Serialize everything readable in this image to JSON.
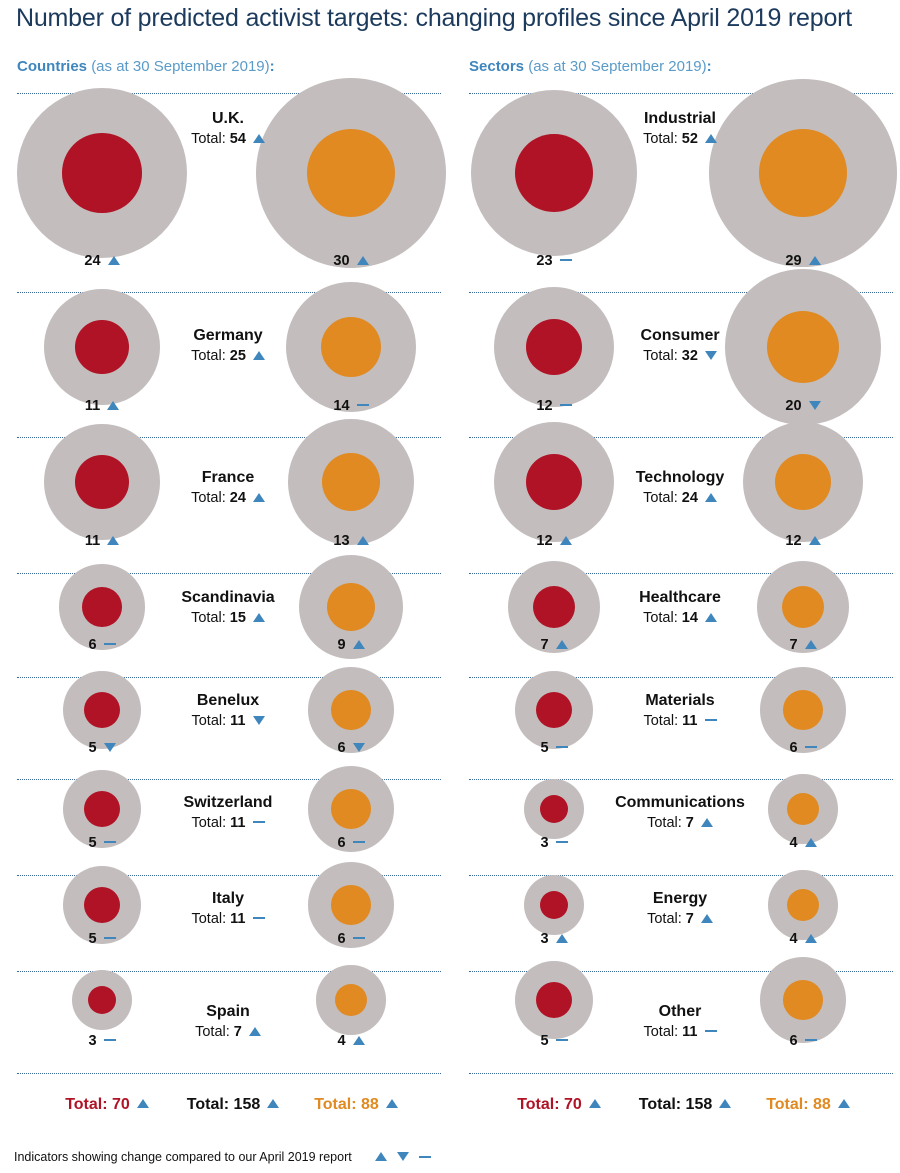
{
  "title": "Number of predicted activist targets: changing profiles since April 2019 report",
  "colors": {
    "outer": "#c3bdbd",
    "red": "#b01325",
    "orange": "#e08a21",
    "indicator": "#3f86bd",
    "text": "#111111",
    "title": "#1b3a5c"
  },
  "columns": [
    {
      "heading": "Countries",
      "subheading": "(as at 30 September 2019)",
      "colon": ":"
    },
    {
      "heading": "Sectors",
      "subheading": "(as at 30 September 2019)",
      "colon": ":"
    }
  ],
  "chart_data": [
    {
      "type": "bubble",
      "title": "Countries",
      "series": [
        {
          "name": "red",
          "color": "#b01325"
        },
        {
          "name": "orange",
          "color": "#e08a21"
        }
      ],
      "rows": [
        {
          "name": "U.K.",
          "total": {
            "label": "Total:",
            "value": 54,
            "change": "up"
          },
          "left": {
            "value": 24,
            "change": "up"
          },
          "right": {
            "value": 30,
            "change": "up"
          }
        },
        {
          "name": "Germany",
          "total": {
            "label": "Total:",
            "value": 25,
            "change": "up"
          },
          "left": {
            "value": 11,
            "change": "up"
          },
          "right": {
            "value": 14,
            "change": "flat"
          }
        },
        {
          "name": "France",
          "total": {
            "label": "Total:",
            "value": 24,
            "change": "up"
          },
          "left": {
            "value": 11,
            "change": "up"
          },
          "right": {
            "value": 13,
            "change": "up"
          }
        },
        {
          "name": "Scandinavia",
          "total": {
            "label": "Total:",
            "value": 15,
            "change": "up"
          },
          "left": {
            "value": 6,
            "change": "flat"
          },
          "right": {
            "value": 9,
            "change": "up"
          }
        },
        {
          "name": "Benelux",
          "total": {
            "label": "Total:",
            "value": 11,
            "change": "down"
          },
          "left": {
            "value": 5,
            "change": "down"
          },
          "right": {
            "value": 6,
            "change": "down"
          }
        },
        {
          "name": "Switzerland",
          "total": {
            "label": "Total:",
            "value": 11,
            "change": "flat"
          },
          "left": {
            "value": 5,
            "change": "flat"
          },
          "right": {
            "value": 6,
            "change": "flat"
          }
        },
        {
          "name": "Italy",
          "total": {
            "label": "Total:",
            "value": 11,
            "change": "flat"
          },
          "left": {
            "value": 5,
            "change": "flat"
          },
          "right": {
            "value": 6,
            "change": "flat"
          }
        },
        {
          "name": "Spain",
          "total": {
            "label": "Total:",
            "value": 7,
            "change": "up"
          },
          "left": {
            "value": 3,
            "change": "flat"
          },
          "right": {
            "value": 4,
            "change": "up"
          }
        }
      ],
      "grand_totals": [
        {
          "label": "Total: 70",
          "color": "#b01325",
          "change": "up"
        },
        {
          "label": "Total: 158",
          "color": "#111111",
          "change": "up"
        },
        {
          "label": "Total: 88",
          "color": "#e08a21",
          "change": "up"
        }
      ]
    },
    {
      "type": "bubble",
      "title": "Sectors",
      "series": [
        {
          "name": "red",
          "color": "#b01325"
        },
        {
          "name": "orange",
          "color": "#e08a21"
        }
      ],
      "rows": [
        {
          "name": "Industrial",
          "total": {
            "label": "Total:",
            "value": 52,
            "change": "up"
          },
          "left": {
            "value": 23,
            "change": "flat"
          },
          "right": {
            "value": 29,
            "change": "up"
          }
        },
        {
          "name": "Consumer",
          "total": {
            "label": "Total:",
            "value": 32,
            "change": "down"
          },
          "left": {
            "value": 12,
            "change": "flat"
          },
          "right": {
            "value": 20,
            "change": "down"
          }
        },
        {
          "name": "Technology",
          "total": {
            "label": "Total:",
            "value": 24,
            "change": "up"
          },
          "left": {
            "value": 12,
            "change": "up"
          },
          "right": {
            "value": 12,
            "change": "up"
          }
        },
        {
          "name": "Healthcare",
          "total": {
            "label": "Total:",
            "value": 14,
            "change": "up"
          },
          "left": {
            "value": 7,
            "change": "up"
          },
          "right": {
            "value": 7,
            "change": "up"
          }
        },
        {
          "name": "Materials",
          "total": {
            "label": "Total:",
            "value": 11,
            "change": "flat"
          },
          "left": {
            "value": 5,
            "change": "flat"
          },
          "right": {
            "value": 6,
            "change": "flat"
          }
        },
        {
          "name": "Communications",
          "total": {
            "label": "Total:",
            "value": 7,
            "change": "up"
          },
          "left": {
            "value": 3,
            "change": "flat"
          },
          "right": {
            "value": 4,
            "change": "up"
          }
        },
        {
          "name": "Energy",
          "total": {
            "label": "Total:",
            "value": 7,
            "change": "up"
          },
          "left": {
            "value": 3,
            "change": "up"
          },
          "right": {
            "value": 4,
            "change": "up"
          }
        },
        {
          "name": "Other",
          "total": {
            "label": "Total:",
            "value": 11,
            "change": "flat"
          },
          "left": {
            "value": 5,
            "change": "flat"
          },
          "right": {
            "value": 6,
            "change": "flat"
          }
        }
      ],
      "grand_totals": [
        {
          "label": "Total: 70",
          "color": "#b01325",
          "change": "up"
        },
        {
          "label": "Total: 158",
          "color": "#111111",
          "change": "up"
        },
        {
          "label": "Total: 88",
          "color": "#e08a21",
          "change": "up"
        }
      ]
    }
  ],
  "legend": {
    "text": "Indicators showing change compared to our April 2019 report",
    "indicators": [
      "up",
      "down",
      "flat"
    ]
  }
}
